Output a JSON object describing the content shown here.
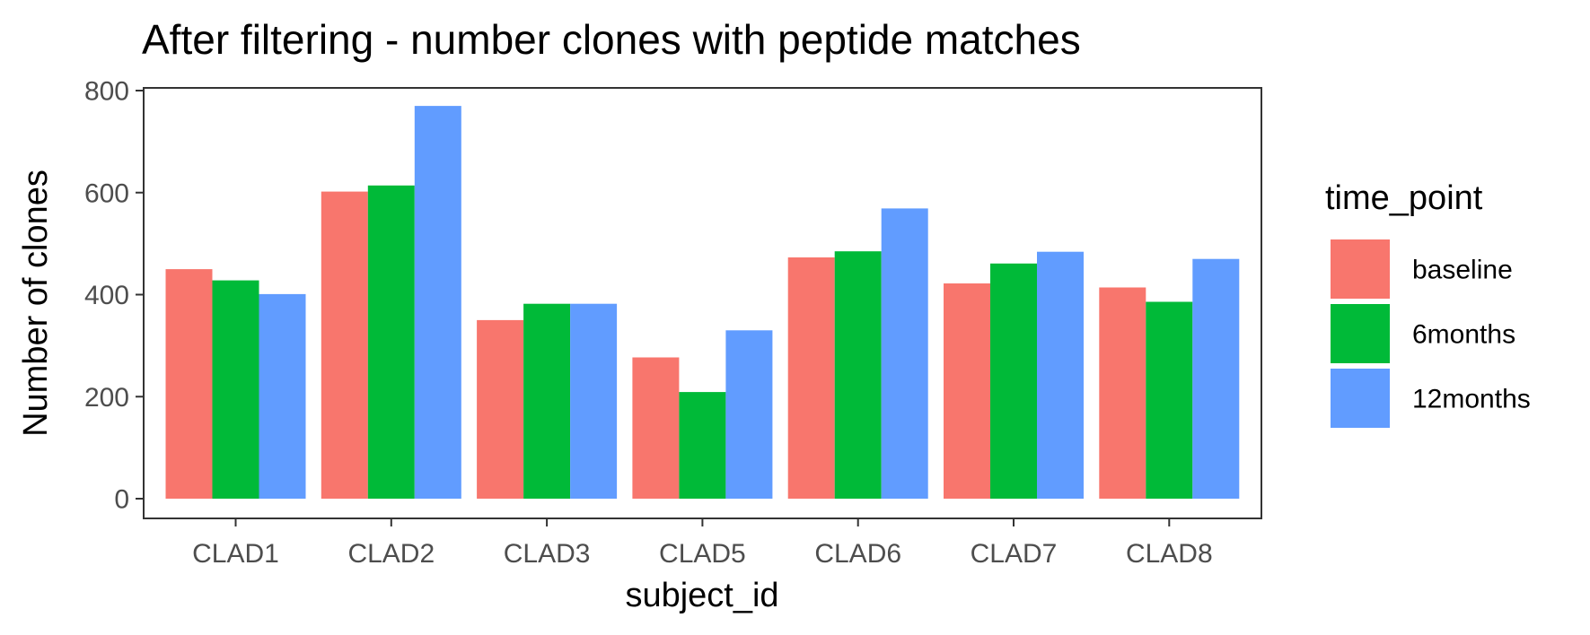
{
  "chart_data": {
    "type": "bar",
    "title": "After filtering - number clones with peptide matches",
    "xlabel": "subject_id",
    "ylabel": "Number of clones",
    "categories": [
      "CLAD1",
      "CLAD2",
      "CLAD3",
      "CLAD5",
      "CLAD6",
      "CLAD7",
      "CLAD8"
    ],
    "series": [
      {
        "name": "baseline",
        "color": "#F8766D",
        "values": [
          450,
          602,
          350,
          277,
          473,
          422,
          414
        ]
      },
      {
        "name": "6months",
        "color": "#00BA38",
        "values": [
          428,
          614,
          382,
          209,
          485,
          461,
          386
        ]
      },
      {
        "name": "12months",
        "color": "#619CFF",
        "values": [
          401,
          770,
          382,
          330,
          569,
          484,
          470
        ]
      }
    ],
    "ylim": [
      0,
      800
    ],
    "yticks": [
      "0",
      "200",
      "400",
      "600",
      "800"
    ],
    "grid": false,
    "legend": {
      "title": "time_point",
      "position": "right"
    }
  }
}
